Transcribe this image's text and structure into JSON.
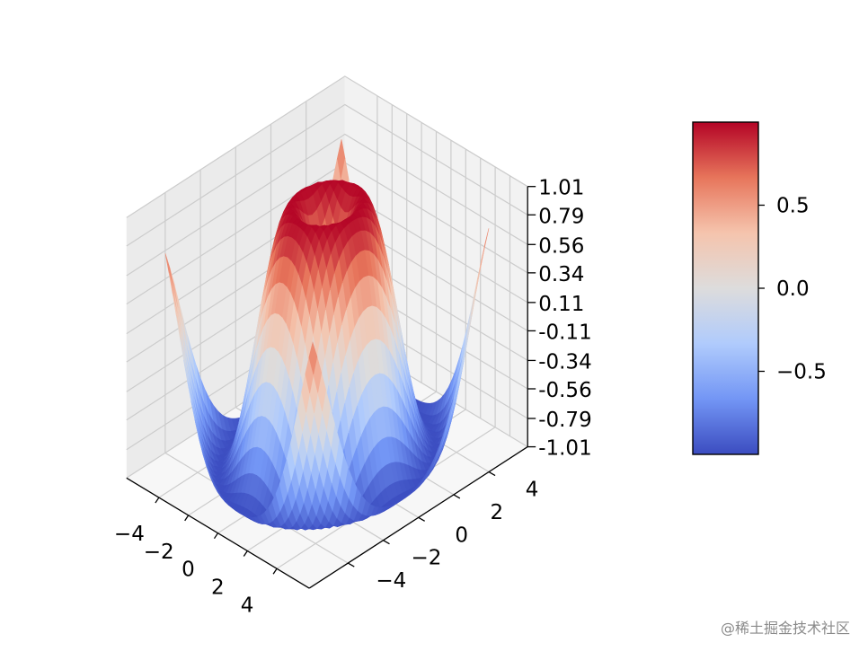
{
  "chart_data": {
    "type": "surface3d",
    "function": "sin(sqrt(x^2 + y^2))",
    "colormap": "coolwarm",
    "colormap_colors": [
      "#3b4cc0",
      "#7396f5",
      "#b0cbfc",
      "#dddcdc",
      "#f5c4ad",
      "#e7755b",
      "#b40426"
    ],
    "x_range": [
      -5,
      5
    ],
    "y_range": [
      -5,
      5
    ],
    "x_step": 0.25,
    "y_step": 0.25,
    "zlim": [
      -1.01,
      1.01
    ],
    "x_ticks": [
      "−4",
      "−2",
      "0",
      "2",
      "4"
    ],
    "y_ticks": [
      "−4",
      "−2",
      "0",
      "2",
      "4"
    ],
    "z_ticks": [
      "-1.01",
      "-0.79",
      "-0.56",
      "-0.34",
      "-0.11",
      "0.11",
      "0.34",
      "0.56",
      "0.79",
      "1.01"
    ],
    "colorbar": {
      "range": [
        -1.0,
        1.0
      ],
      "ticks": [
        "0.5",
        "0.0",
        "−0.5"
      ],
      "tick_values": [
        0.5,
        0.0,
        -0.5
      ]
    },
    "grid": true
  },
  "watermark": "@稀土掘金技术社区"
}
